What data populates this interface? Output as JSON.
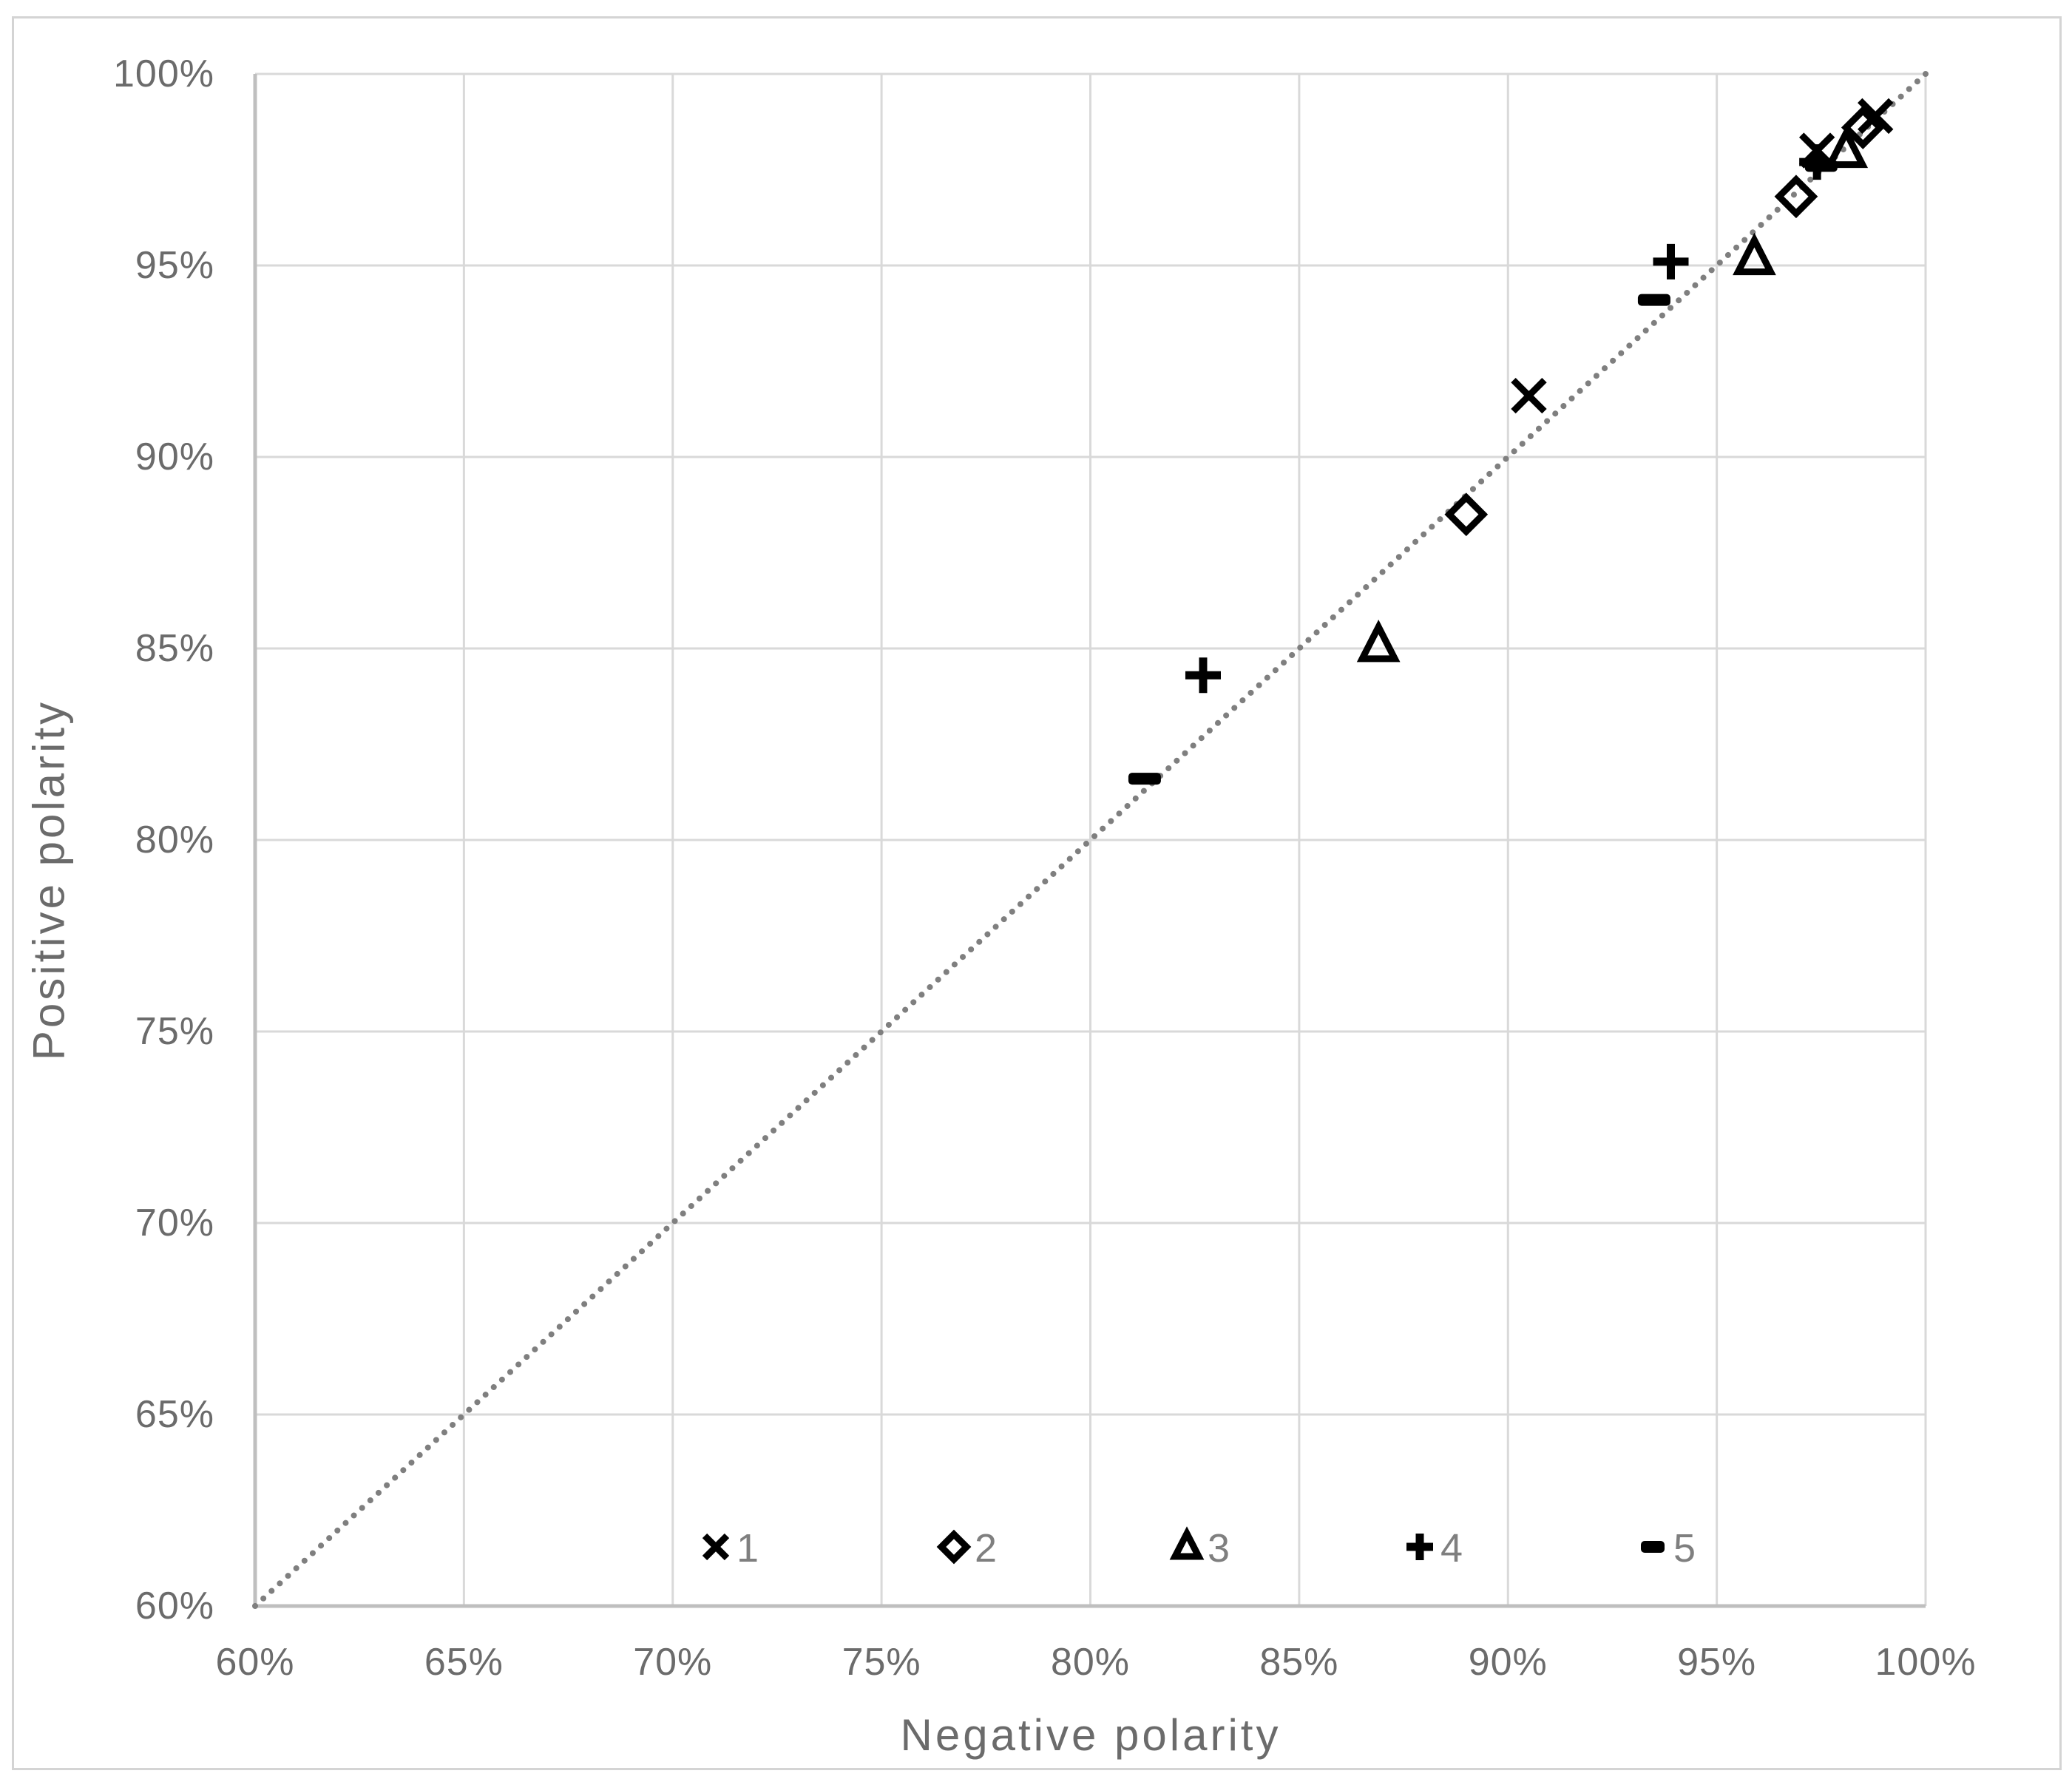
{
  "chart_data": {
    "type": "scatter",
    "title": "",
    "xlabel": "Negative polarity",
    "ylabel": "Positive polarity",
    "xlim": [
      60,
      100
    ],
    "ylim": [
      60,
      100
    ],
    "tick_values": [
      60,
      65,
      70,
      75,
      80,
      85,
      90,
      95,
      100
    ],
    "x_tick_labels": [
      "60%",
      "65%",
      "70%",
      "75%",
      "80%",
      "85%",
      "90%",
      "95%",
      "100%"
    ],
    "y_tick_labels": [
      "60%",
      "65%",
      "70%",
      "75%",
      "80%",
      "85%",
      "90%",
      "95%",
      "100%"
    ],
    "grid": true,
    "diagonal_reference_line": {
      "from": [
        60,
        60
      ],
      "to": [
        100,
        100
      ],
      "style": "dotted"
    },
    "legend_position": "inside-bottom",
    "series": [
      {
        "name": "1",
        "marker": "x",
        "points": [
          [
            90.5,
            91.6
          ],
          [
            97.4,
            98.0
          ],
          [
            98.8,
            98.9
          ]
        ]
      },
      {
        "name": "2",
        "marker": "diamond",
        "points": [
          [
            89.0,
            88.5
          ],
          [
            96.9,
            96.8
          ],
          [
            98.5,
            98.6
          ]
        ]
      },
      {
        "name": "3",
        "marker": "triangle",
        "points": [
          [
            86.9,
            85.1
          ],
          [
            95.9,
            95.2
          ],
          [
            98.1,
            98.0
          ]
        ]
      },
      {
        "name": "4",
        "marker": "plus",
        "points": [
          [
            82.7,
            84.3
          ],
          [
            93.9,
            95.1
          ],
          [
            97.4,
            97.7
          ]
        ]
      },
      {
        "name": "5",
        "marker": "dash",
        "points": [
          [
            81.3,
            81.6
          ],
          [
            93.5,
            94.1
          ],
          [
            97.5,
            97.6
          ]
        ]
      }
    ],
    "colors": {
      "marker": "#000000",
      "grid": "#d9d9d9",
      "axis_line": "#bfbfbf",
      "tick_text": "#6b6b6b",
      "diagonal": "#7f7f7f",
      "legend_text": "#7f7f7f",
      "figure_border": "#d4d4d4"
    }
  }
}
